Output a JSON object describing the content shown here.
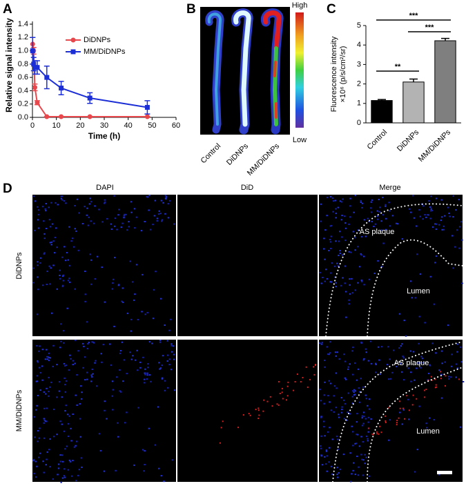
{
  "panel_labels": [
    "A",
    "B",
    "C",
    "D"
  ],
  "chart_data": [
    {
      "type": "line",
      "y_label": "Relative signal intensity",
      "x_label": "Time (h)",
      "x": [
        0.083,
        0.5,
        1,
        2,
        6,
        12,
        24,
        48
      ],
      "series": [
        {
          "name": "DiDNPs",
          "color": "#e8474c",
          "marker": "circle",
          "values": [
            1.1,
            1.0,
            0.45,
            0.22,
            0.01,
            0.01,
            0.01,
            0.01
          ],
          "errors": [
            0.1,
            0.05,
            0.05,
            0.03,
            0,
            0,
            0,
            0
          ]
        },
        {
          "name": "MM/DiDNPs",
          "color": "#1c2fd6",
          "marker": "square",
          "values": [
            1.0,
            0.8,
            0.75,
            0.75,
            0.6,
            0.44,
            0.29,
            0.15
          ],
          "errors": [
            0.2,
            0.1,
            0.1,
            0.1,
            0.17,
            0.1,
            0.08,
            0.1
          ]
        }
      ],
      "xlim": [
        0,
        60
      ],
      "xticks": [
        0,
        10,
        20,
        30,
        40,
        50,
        60
      ],
      "ylim": [
        0,
        1.4
      ],
      "yticks": [
        {
          "value": 0,
          "label": "0.0"
        },
        0.2,
        0.4,
        0.6,
        0.8,
        {
          "value": 1,
          "label": "1.0"
        },
        1.2,
        1.4
      ],
      "legend": "top"
    },
    {
      "type": "bar",
      "y_label": [
        "Fluorescence intensity",
        "×10⁶ (p/s/cm²/sr)"
      ],
      "categories": [
        "Control",
        "DiDNPs",
        "MM/DiDNPs"
      ],
      "values": [
        1.15,
        2.1,
        4.22
      ],
      "errors": [
        0.05,
        0.15,
        0.12
      ],
      "colors": [
        "#000000",
        "#b3b3b3",
        "#7f7f7f"
      ],
      "ylim": [
        0,
        5
      ],
      "yticks": [
        0,
        1,
        2,
        3,
        4,
        5
      ],
      "annotations": [
        "**",
        "***",
        "***"
      ]
    }
  ],
  "panel_b": {
    "scale_high": "High",
    "scale_low": "Low",
    "labels": [
      "Control",
      "DiDNPs",
      "MM/DiDNPs"
    ]
  },
  "panel_d": {
    "columns": [
      "DAPI",
      "DiD",
      "Merge"
    ],
    "rows": [
      "DiDNPs",
      "MM/DiDNPs"
    ],
    "annotations": [
      [
        "AS plaque",
        "Lumen"
      ],
      [
        "AS plaque",
        "Lumen"
      ]
    ]
  }
}
